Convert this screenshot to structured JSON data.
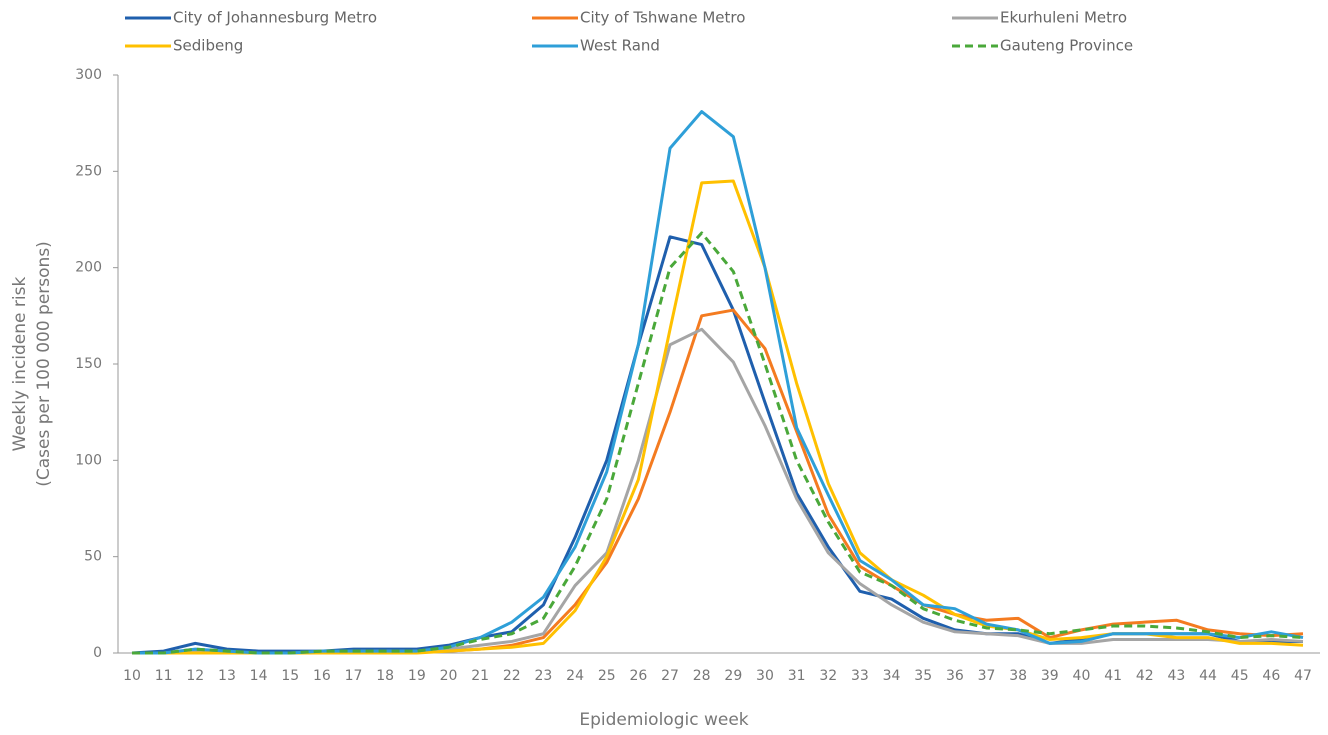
{
  "chart_data": {
    "type": "line",
    "xlabel": "Epidemiologic week",
    "ylabel": [
      "Weekly incidene risk",
      "(Cases per 100 000 persons)"
    ],
    "categories": [
      "10",
      "11",
      "12",
      "13",
      "14",
      "15",
      "16",
      "17",
      "18",
      "19",
      "20",
      "21",
      "22",
      "23",
      "24",
      "25",
      "26",
      "27",
      "28",
      "29",
      "30",
      "31",
      "32",
      "33",
      "34",
      "35",
      "36",
      "37",
      "38",
      "39",
      "40",
      "41",
      "42",
      "43",
      "44",
      "45",
      "46",
      "47"
    ],
    "ylim": [
      0,
      300
    ],
    "yticks": [
      0,
      50,
      100,
      150,
      200,
      250,
      300
    ],
    "series": [
      {
        "name": "City of Johannesburg Metro",
        "color": "#1f5fad",
        "values": [
          0,
          1,
          5,
          2,
          1,
          1,
          1,
          2,
          2,
          2,
          4,
          8,
          11,
          25,
          60,
          100,
          160,
          216,
          212,
          178,
          130,
          83,
          55,
          32,
          28,
          18,
          12,
          10,
          10,
          5,
          7,
          10,
          10,
          10,
          10,
          6,
          6,
          6
        ]
      },
      {
        "name": "City of Tshwane Metro",
        "color": "#f47b20",
        "values": [
          0,
          0,
          1,
          0,
          0,
          0,
          0,
          1,
          1,
          1,
          1,
          2,
          4,
          8,
          25,
          47,
          80,
          125,
          175,
          178,
          158,
          115,
          72,
          45,
          35,
          25,
          20,
          17,
          18,
          8,
          12,
          15,
          16,
          17,
          12,
          10,
          9,
          10
        ]
      },
      {
        "name": "Ekurhuleni Metro",
        "color": "#a5a5a5",
        "values": [
          0,
          0,
          1,
          0,
          0,
          0,
          0,
          1,
          1,
          1,
          2,
          4,
          6,
          10,
          35,
          52,
          100,
          160,
          168,
          151,
          118,
          80,
          52,
          36,
          25,
          16,
          11,
          10,
          9,
          5,
          5,
          7,
          7,
          7,
          7,
          6,
          7,
          6
        ]
      },
      {
        "name": "Sedibeng",
        "color": "#ffc000",
        "values": [
          0,
          0,
          0,
          0,
          0,
          0,
          0,
          0,
          0,
          0,
          1,
          2,
          3,
          5,
          22,
          50,
          90,
          168,
          244,
          245,
          200,
          140,
          88,
          52,
          38,
          30,
          20,
          14,
          12,
          7,
          8,
          10,
          10,
          8,
          8,
          5,
          5,
          4
        ]
      },
      {
        "name": "West Rand",
        "color": "#2e9fd8",
        "values": [
          0,
          0,
          2,
          1,
          0,
          0,
          1,
          1,
          1,
          1,
          3,
          8,
          16,
          29,
          55,
          94,
          160,
          262,
          281,
          268,
          200,
          117,
          82,
          48,
          38,
          25,
          23,
          15,
          12,
          5,
          6,
          10,
          10,
          10,
          10,
          8,
          11,
          8
        ]
      },
      {
        "name": "Gauteng Province",
        "color": "#4aa83a",
        "dashed": true,
        "values": [
          0,
          0,
          2,
          1,
          0,
          0,
          1,
          1,
          1,
          1,
          3,
          7,
          10,
          18,
          45,
          80,
          140,
          200,
          218,
          198,
          150,
          100,
          68,
          42,
          35,
          23,
          17,
          13,
          12,
          10,
          12,
          14,
          14,
          13,
          11,
          8,
          9,
          8
        ]
      }
    ]
  }
}
